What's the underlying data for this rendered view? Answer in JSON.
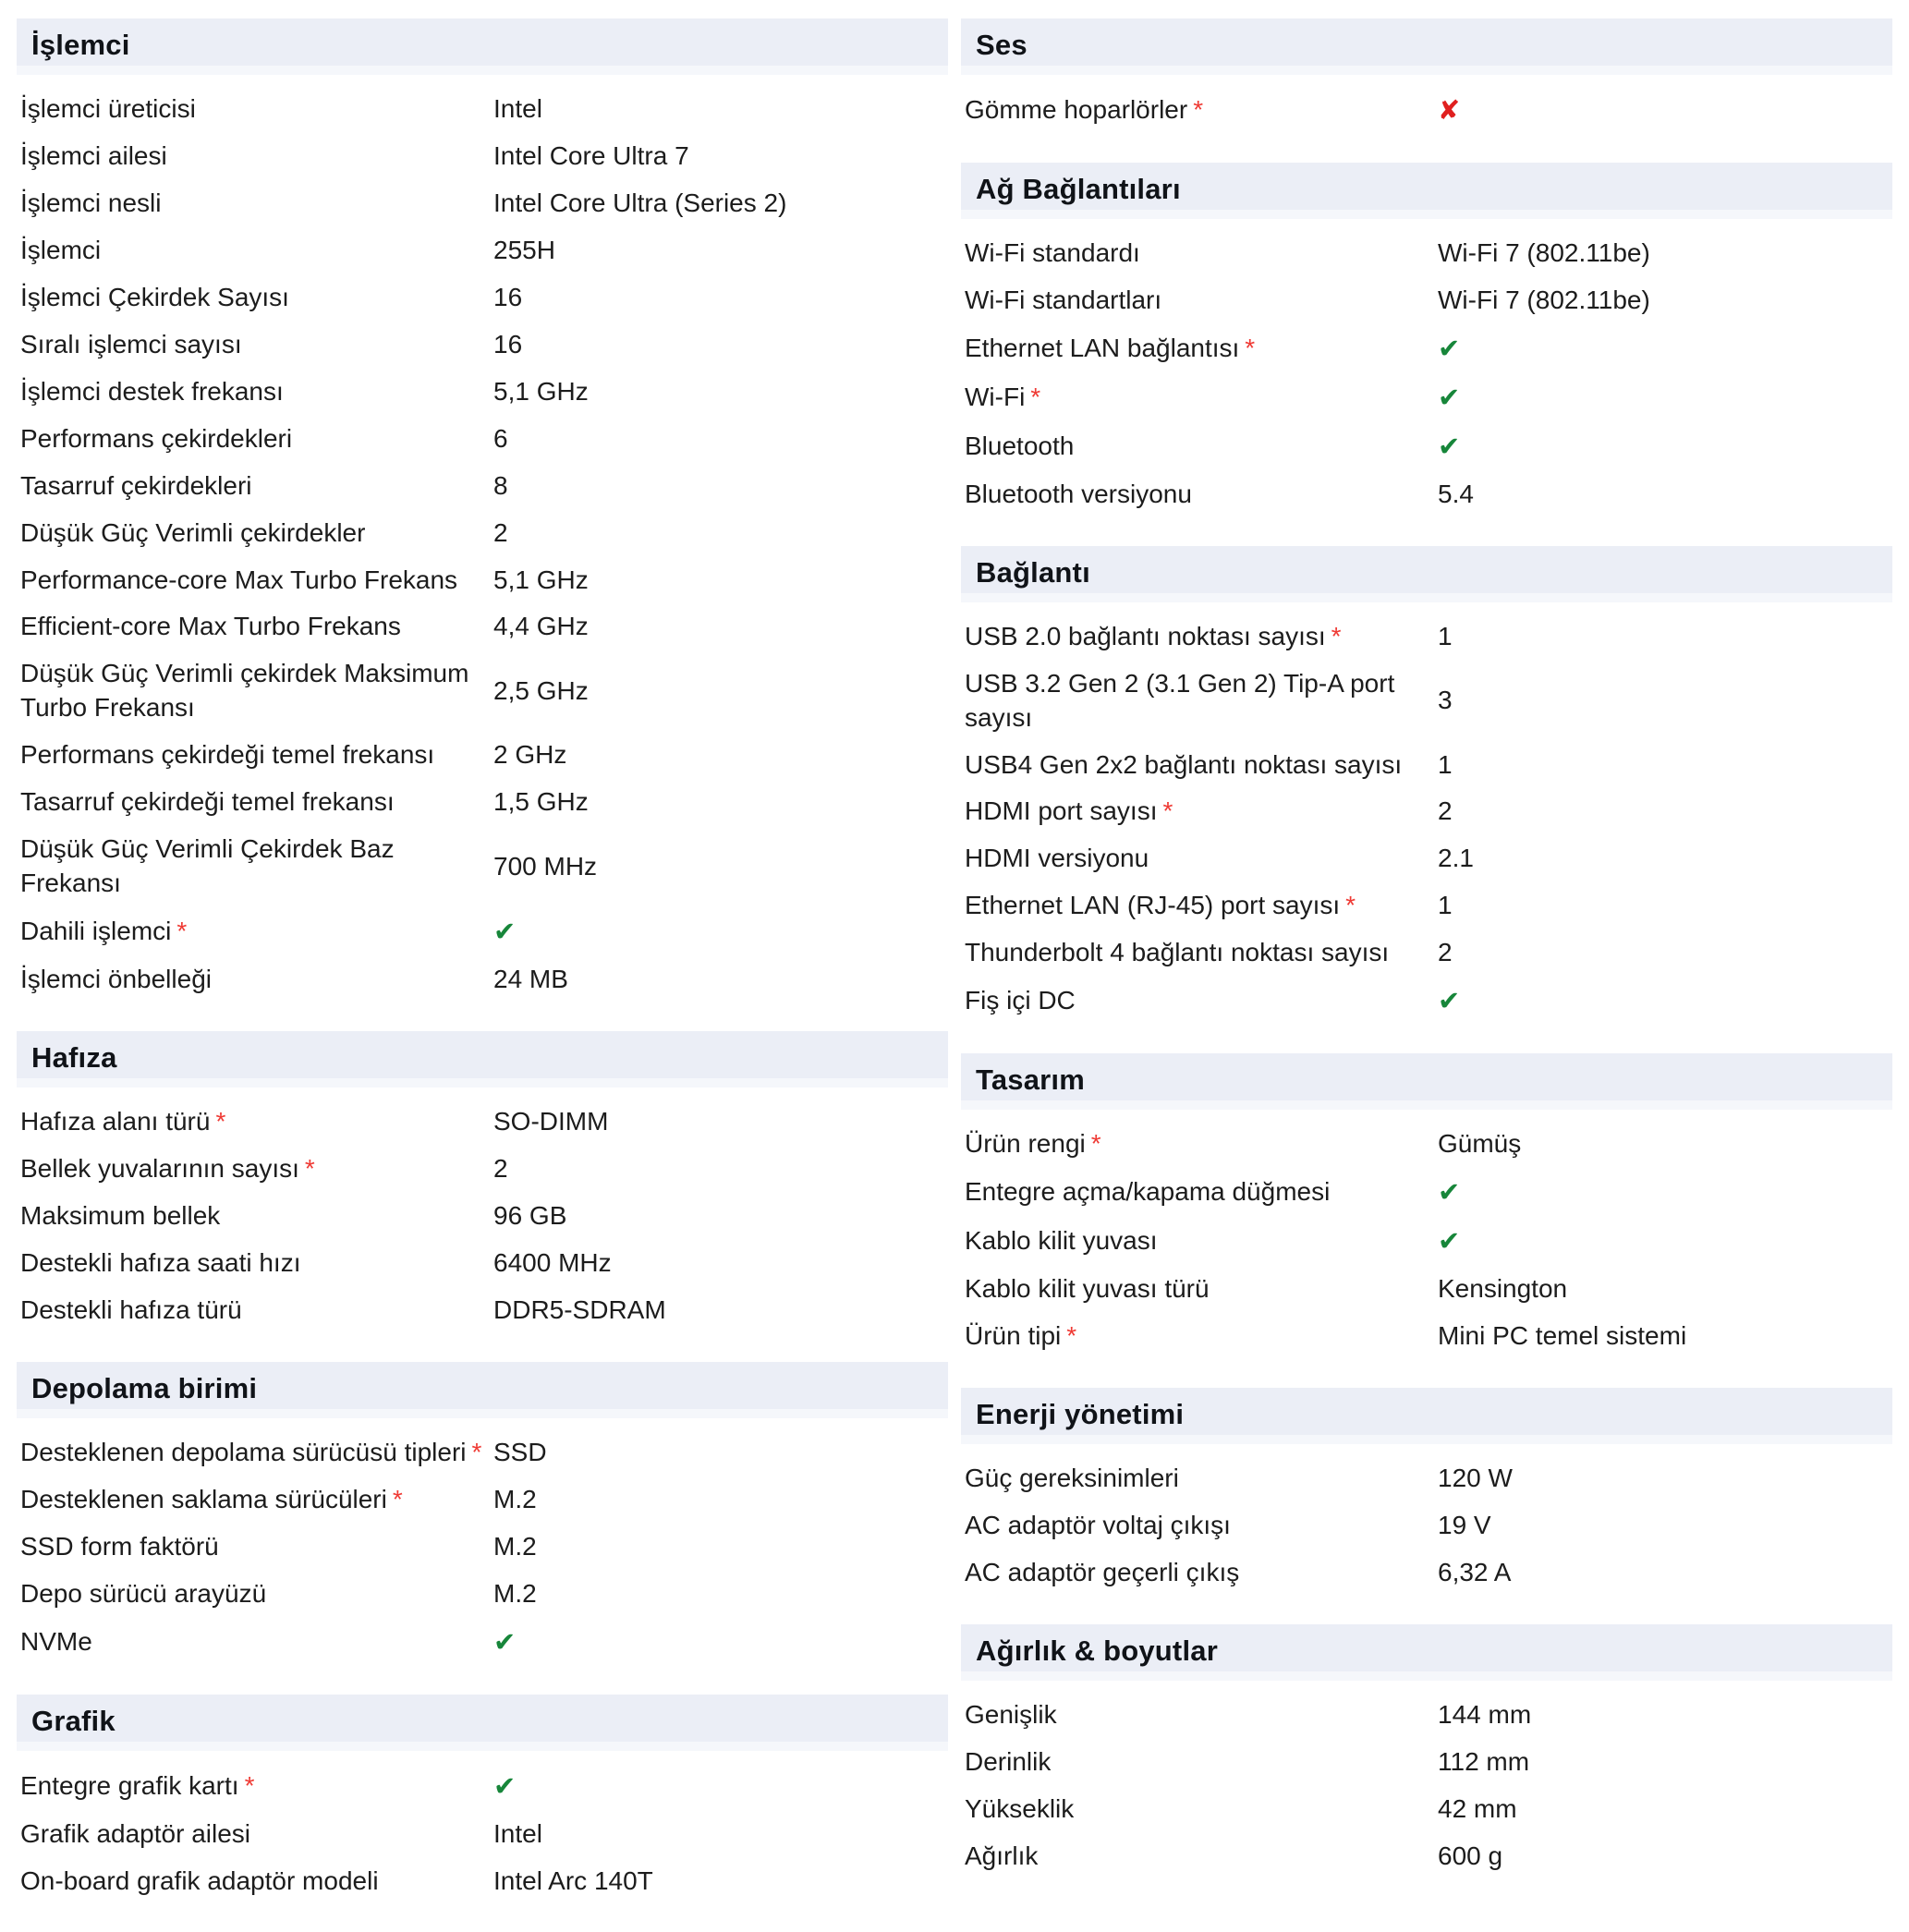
{
  "page": {
    "background": "#ffffff"
  },
  "colors": {
    "header_bg": "#ebeef6",
    "header_bg_fade": "#f5f7fb",
    "text": "#1c1c1c",
    "asterisk": "#ef3a34",
    "check_green": "#17863a",
    "cross_red": "#e0201f"
  },
  "icons": {
    "asterisk": "*",
    "check": "✔",
    "cross": "✘"
  },
  "columns": [
    {
      "side": "left",
      "sections": [
        {
          "title": "İşlemci",
          "rows": [
            {
              "label": "İşlemci üreticisi",
              "required": false,
              "type": "text",
              "value": "Intel"
            },
            {
              "label": "İşlemci ailesi",
              "required": false,
              "type": "text",
              "value": "Intel Core Ultra 7"
            },
            {
              "label": "İşlemci nesli",
              "required": false,
              "type": "text",
              "value": "Intel Core Ultra (Series 2)"
            },
            {
              "label": "İşlemci",
              "required": false,
              "type": "text",
              "value": "255H"
            },
            {
              "label": "İşlemci Çekirdek Sayısı",
              "required": false,
              "type": "text",
              "value": "16"
            },
            {
              "label": "Sıralı işlemci sayısı",
              "required": false,
              "type": "text",
              "value": "16"
            },
            {
              "label": "İşlemci destek frekansı",
              "required": false,
              "type": "text",
              "value": "5,1 GHz"
            },
            {
              "label": "Performans çekirdekleri",
              "required": false,
              "type": "text",
              "value": "6"
            },
            {
              "label": "Tasarruf çekirdekleri",
              "required": false,
              "type": "text",
              "value": "8"
            },
            {
              "label": "Düşük Güç Verimli çekirdekler",
              "required": false,
              "type": "text",
              "value": "2"
            },
            {
              "label": "Performance-core Max Turbo Frekans",
              "required": false,
              "type": "text",
              "value": "5,1 GHz"
            },
            {
              "label": "Efficient-core Max Turbo Frekans",
              "required": false,
              "type": "text",
              "value": "4,4 GHz"
            },
            {
              "label": "Düşük Güç Verimli çekirdek Maksimum Turbo Frekansı",
              "required": false,
              "type": "text",
              "value": "2,5 GHz"
            },
            {
              "label": "Performans çekirdeği temel frekansı",
              "required": false,
              "type": "text",
              "value": "2 GHz"
            },
            {
              "label": "Tasarruf çekirdeği temel frekansı",
              "required": false,
              "type": "text",
              "value": "1,5 GHz"
            },
            {
              "label": "Düşük Güç Verimli Çekirdek Baz Frekansı",
              "required": false,
              "type": "text",
              "value": "700 MHz"
            },
            {
              "label": "Dahili işlemci",
              "required": true,
              "type": "check",
              "value": ""
            },
            {
              "label": "İşlemci önbelleği",
              "required": false,
              "type": "text",
              "value": "24 MB"
            }
          ]
        },
        {
          "title": "Hafıza",
          "rows": [
            {
              "label": "Hafıza alanı türü",
              "required": true,
              "type": "text",
              "value": "SO-DIMM"
            },
            {
              "label": "Bellek yuvalarının sayısı",
              "required": true,
              "type": "text",
              "value": "2"
            },
            {
              "label": "Maksimum bellek",
              "required": false,
              "type": "text",
              "value": "96 GB"
            },
            {
              "label": "Destekli hafıza saati hızı",
              "required": false,
              "type": "text",
              "value": "6400 MHz"
            },
            {
              "label": "Destekli hafıza türü",
              "required": false,
              "type": "text",
              "value": "DDR5-SDRAM"
            }
          ]
        },
        {
          "title": "Depolama birimi",
          "rows": [
            {
              "label": "Desteklenen depolama sürücüsü tipleri",
              "required": true,
              "type": "text",
              "value": "SSD"
            },
            {
              "label": "Desteklenen saklama sürücüleri",
              "required": true,
              "type": "text",
              "value": "M.2"
            },
            {
              "label": "SSD form faktörü",
              "required": false,
              "type": "text",
              "value": "M.2"
            },
            {
              "label": "Depo sürücü arayüzü",
              "required": false,
              "type": "text",
              "value": "M.2"
            },
            {
              "label": "NVMe",
              "required": false,
              "type": "check",
              "value": ""
            }
          ]
        },
        {
          "title": "Grafik",
          "rows": [
            {
              "label": "Entegre grafik kartı",
              "required": true,
              "type": "check",
              "value": ""
            },
            {
              "label": "Grafik adaptör ailesi",
              "required": false,
              "type": "text",
              "value": "Intel"
            },
            {
              "label": "On-board grafik adaptör modeli",
              "required": false,
              "type": "text",
              "value": "Intel Arc 140T"
            }
          ]
        }
      ]
    },
    {
      "side": "right",
      "sections": [
        {
          "title": "Ses",
          "rows": [
            {
              "label": "Gömme hoparlörler",
              "required": true,
              "type": "cross",
              "value": ""
            }
          ]
        },
        {
          "title": "Ağ Bağlantıları",
          "rows": [
            {
              "label": "Wi-Fi standardı",
              "required": false,
              "type": "text",
              "value": "Wi-Fi 7 (802.11be)"
            },
            {
              "label": "Wi-Fi standartları",
              "required": false,
              "type": "text",
              "value": "Wi-Fi 7 (802.11be)"
            },
            {
              "label": "Ethernet LAN bağlantısı",
              "required": true,
              "type": "check",
              "value": ""
            },
            {
              "label": "Wi-Fi",
              "required": true,
              "type": "check",
              "value": ""
            },
            {
              "label": "Bluetooth",
              "required": false,
              "type": "check",
              "value": ""
            },
            {
              "label": "Bluetooth versiyonu",
              "required": false,
              "type": "text",
              "value": "5.4"
            }
          ]
        },
        {
          "title": "Bağlantı",
          "rows": [
            {
              "label": "USB 2.0 bağlantı noktası sayısı",
              "required": true,
              "type": "text",
              "value": "1"
            },
            {
              "label": "USB 3.2 Gen 2 (3.1 Gen 2) Tip-A port sayısı",
              "required": false,
              "type": "text",
              "value": "3"
            },
            {
              "label": "USB4 Gen 2x2 bağlantı noktası sayısı",
              "required": false,
              "type": "text",
              "value": "1"
            },
            {
              "label": "HDMI port sayısı",
              "required": true,
              "type": "text",
              "value": "2"
            },
            {
              "label": "HDMI versiyonu",
              "required": false,
              "type": "text",
              "value": "2.1"
            },
            {
              "label": "Ethernet LAN (RJ-45) port sayısı",
              "required": true,
              "type": "text",
              "value": "1"
            },
            {
              "label": "Thunderbolt 4 bağlantı noktası sayısı",
              "required": false,
              "type": "text",
              "value": "2"
            },
            {
              "label": "Fiş içi DC",
              "required": false,
              "type": "check",
              "value": ""
            }
          ]
        },
        {
          "title": "Tasarım",
          "rows": [
            {
              "label": "Ürün rengi",
              "required": true,
              "type": "text",
              "value": "Gümüş"
            },
            {
              "label": "Entegre açma/kapama düğmesi",
              "required": false,
              "type": "check",
              "value": ""
            },
            {
              "label": "Kablo kilit yuvası",
              "required": false,
              "type": "check",
              "value": ""
            },
            {
              "label": "Kablo kilit yuvası türü",
              "required": false,
              "type": "text",
              "value": "Kensington"
            },
            {
              "label": "Ürün tipi",
              "required": true,
              "type": "text",
              "value": "Mini PC temel sistemi"
            }
          ]
        },
        {
          "title": "Enerji yönetimi",
          "rows": [
            {
              "label": "Güç gereksinimleri",
              "required": false,
              "type": "text",
              "value": "120 W"
            },
            {
              "label": "AC adaptör voltaj çıkışı",
              "required": false,
              "type": "text",
              "value": "19 V"
            },
            {
              "label": "AC adaptör geçerli çıkış",
              "required": false,
              "type": "text",
              "value": "6,32 A"
            }
          ]
        },
        {
          "title": "Ağırlık & boyutlar",
          "rows": [
            {
              "label": "Genişlik",
              "required": false,
              "type": "text",
              "value": "144 mm"
            },
            {
              "label": "Derinlik",
              "required": false,
              "type": "text",
              "value": "112 mm"
            },
            {
              "label": "Yükseklik",
              "required": false,
              "type": "text",
              "value": "42 mm"
            },
            {
              "label": "Ağırlık",
              "required": false,
              "type": "text",
              "value": "600 g"
            }
          ]
        }
      ]
    }
  ]
}
